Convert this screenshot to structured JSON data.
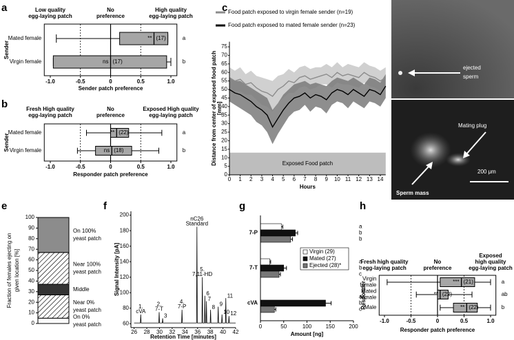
{
  "chart_data": [
    {
      "panel": "a",
      "type": "box",
      "headers": [
        [
          "Low quality",
          "egg-laying patch"
        ],
        [
          "No",
          "preference"
        ],
        [
          "High quality",
          "egg-laying patch"
        ]
      ],
      "ylabel": "Sender",
      "xlabel": "Sender patch preference",
      "categories": [
        "Mated female",
        "Virgin female"
      ],
      "min": [
        -0.9,
        -0.95
      ],
      "q1": [
        0.15,
        -0.95
      ],
      "median": [
        0.72,
        0.0
      ],
      "q3": [
        0.95,
        0.93
      ],
      "max": [
        0.95,
        1.0
      ],
      "stats": [
        "**",
        "ns"
      ],
      "n": [
        "(17)",
        "(17)"
      ],
      "letters": [
        "a",
        "b"
      ],
      "xlim": [
        -1.1,
        1.1
      ],
      "xticks": [
        {
          "value": -1,
          "label": "-1.0"
        },
        -0.5,
        0,
        0.5,
        {
          "value": 1,
          "label": "1.0"
        }
      ],
      "grid": true,
      "color": "#a6a6a6"
    },
    {
      "panel": "b",
      "type": "box",
      "headers": [
        [
          "Fresh High quality",
          "egg-laying patch"
        ],
        [
          "No",
          "preference"
        ],
        [
          "Exposed High quality",
          "egg-laying patch"
        ]
      ],
      "ylabel": "Sender",
      "xlabel": "Responder patch preference",
      "categories": [
        "Mated female",
        "Virgin female"
      ],
      "min": [
        -0.4,
        -0.55
      ],
      "q1": [
        0.0,
        -0.25
      ],
      "median": [
        0.1,
        0.02
      ],
      "q3": [
        0.3,
        0.35
      ],
      "max": [
        0.85,
        0.8
      ],
      "stats": [
        "**",
        "ns"
      ],
      "n": [
        "(22)",
        "(18)"
      ],
      "letters": [
        "a",
        "b"
      ],
      "xlim": [
        -1.1,
        1.1
      ],
      "xticks": [
        {
          "value": -1,
          "label": "-1.0"
        },
        -0.5,
        0,
        0.5,
        {
          "value": 1,
          "label": "1.0"
        }
      ],
      "grid": true,
      "color": "#a6a6a6"
    },
    {
      "panel": "c",
      "type": "line",
      "ylabel": [
        "Distance from center of exposed food patch",
        "[mm]"
      ],
      "xlabel": "Hours",
      "x": [
        0,
        0.5,
        1,
        1.5,
        2,
        2.5,
        3,
        3.5,
        4,
        4.5,
        5,
        5.5,
        6,
        6.5,
        7,
        7.5,
        8,
        8.5,
        9,
        9.5,
        10,
        10.5,
        11,
        11.5,
        12,
        12.5,
        13,
        13.5,
        14,
        14.5
      ],
      "series": [
        {
          "name": "Food patch exposed to  virgin female sender (n=19)",
          "color": "#8c8c8c",
          "band_color": "#c8c8c8",
          "values": [
            57,
            55,
            56,
            53,
            54,
            51,
            49,
            48,
            46,
            50,
            52,
            55,
            54,
            57,
            58,
            56,
            57,
            58,
            59,
            57,
            60,
            58,
            59,
            58,
            57,
            60,
            58,
            57,
            55,
            57
          ],
          "errors": [
            6,
            6,
            7,
            6,
            7,
            7,
            8,
            8,
            9,
            8,
            7,
            7,
            6,
            6,
            6,
            6,
            6,
            5,
            6,
            6,
            6,
            5,
            6,
            6,
            6,
            6,
            6,
            6,
            6,
            6
          ]
        },
        {
          "name": "Food patch exposed to  mated female sender (n=23)",
          "color": "#000000",
          "band_color": "#7a7a7a",
          "values": [
            50,
            48,
            47,
            45,
            43,
            40,
            38,
            35,
            28,
            33,
            38,
            42,
            45,
            46,
            48,
            45,
            47,
            46,
            44,
            48,
            50,
            49,
            47,
            50,
            48,
            46,
            50,
            49,
            47,
            52
          ],
          "errors": [
            7,
            7,
            8,
            8,
            8,
            9,
            9,
            10,
            10,
            9,
            9,
            8,
            8,
            8,
            7,
            8,
            7,
            7,
            8,
            7,
            7,
            7,
            8,
            7,
            7,
            7,
            7,
            7,
            7,
            7
          ]
        }
      ],
      "region": {
        "label": "Exposed Food patch",
        "ylim": [
          0,
          13
        ],
        "color": "#bdbdbd"
      },
      "xlim": [
        0,
        14.5
      ],
      "ylim": [
        0,
        78
      ],
      "xticks": [
        0,
        1,
        2,
        3,
        4,
        5,
        6,
        7,
        8,
        9,
        10,
        11,
        12,
        13,
        14
      ],
      "yticks": [
        0,
        5,
        10,
        15,
        20,
        25,
        30,
        35,
        40,
        45,
        50,
        55,
        60,
        65,
        70,
        75
      ]
    },
    {
      "panel": "e",
      "type": "stacked_bar",
      "ylabel": [
        "Fraction of females ejecting on",
        "given location [%]"
      ],
      "series": [
        {
          "name": [
            "On 0%",
            "yeast patch"
          ],
          "value": 5,
          "color": "#ffffff"
        },
        {
          "name": [
            "Near 0%",
            "yeast patch"
          ],
          "value": 22,
          "color": "#ffffff",
          "pattern": "hatch"
        },
        {
          "name": [
            "Middle"
          ],
          "value": 10,
          "color": "#333333"
        },
        {
          "name": [
            "Near 100%",
            "yeast patch"
          ],
          "value": 30,
          "color": "#ffffff",
          "pattern": "hatch"
        },
        {
          "name": [
            "On 100%",
            "yeast patch"
          ],
          "value": 33,
          "color": "#8c8c8c"
        }
      ],
      "ylim": [
        0,
        100
      ],
      "yticks": [
        0,
        10,
        20,
        30,
        40,
        50,
        60,
        70,
        80,
        90,
        100
      ]
    },
    {
      "panel": "f",
      "type": "line",
      "ylabel": [
        "Signal Intensity [pA]"
      ],
      "xlabel": "Retention Time [minutes]",
      "x": [
        26,
        26.99,
        27.05,
        27.11,
        29.89,
        29.95,
        30.01,
        30.44,
        30.5,
        30.56,
        33.49,
        33.55,
        33.61,
        35.84,
        35.9,
        35.96,
        36.69,
        36.75,
        36.81,
        37.09,
        37.15,
        37.21,
        37.34,
        37.4,
        37.46,
        37.99,
        38.05,
        38.11,
        39.19,
        39.25,
        39.31,
        39.79,
        39.85,
        39.91,
        40.39,
        40.45,
        40.51,
        40.89,
        40.95,
        41.01,
        42
      ],
      "values": [
        61,
        61,
        72,
        61,
        61,
        75,
        61,
        61,
        67,
        61,
        61,
        78,
        61,
        61,
        185,
        61,
        61,
        120,
        61,
        61,
        96,
        61,
        61,
        89,
        61,
        61,
        78,
        61,
        61,
        82,
        61,
        61,
        72,
        61,
        61,
        93,
        61,
        61,
        70,
        61,
        61
      ],
      "color": "#000000",
      "annotations": [
        {
          "text": [
            "1.",
            "cVA"
          ],
          "x": 27.05,
          "y": 72
        },
        {
          "text": [
            "2.",
            "7-T"
          ],
          "x": 29.95,
          "y": 75
        },
        {
          "text": [
            "3"
          ],
          "x": 30.5,
          "y": 67
        },
        {
          "text": [
            "4.",
            "7-P"
          ],
          "x": 33.55,
          "y": 78
        },
        {
          "text": [
            "nC26",
            "Standard"
          ],
          "x": 35.9,
          "y": 185
        },
        {
          "text": [
            "5.",
            "7,11-HD"
          ],
          "x": 36.75,
          "y": 120
        },
        {
          "text": [
            "6"
          ],
          "x": 37.15,
          "y": 96
        },
        {
          "text": [
            "7"
          ],
          "x": 37.4,
          "y": 89
        },
        {
          "text": [
            "8"
          ],
          "x": 38.05,
          "y": 78
        },
        {
          "text": [
            "9"
          ],
          "x": 39.25,
          "y": 82
        },
        {
          "text": [
            "10"
          ],
          "x": 39.85,
          "y": 72
        },
        {
          "text": [
            "11"
          ],
          "x": 40.45,
          "y": 93
        },
        {
          "text": [
            "12"
          ],
          "x": 40.95,
          "y": 70
        }
      ],
      "xlim": [
        25.5,
        42
      ],
      "ylim": [
        55,
        205
      ],
      "xticks": [
        26,
        28,
        30,
        32,
        34,
        36,
        38,
        40,
        42
      ],
      "yticks": [
        60,
        80,
        100,
        120,
        140,
        160,
        180,
        200
      ]
    },
    {
      "panel": "g",
      "type": "hbar",
      "categories": [
        "7-P",
        "7-T",
        "cVA"
      ],
      "series": [
        {
          "name": "Virgin (29)",
          "color": "#ffffff",
          "values": [
            45,
            20,
            0
          ],
          "errors": [
            3,
            2,
            0
          ],
          "letters": [
            "a",
            "a",
            "a"
          ]
        },
        {
          "name": "Mated (27)",
          "color": "#111111",
          "values": [
            75,
            50,
            140
          ],
          "errors": [
            5,
            6,
            12
          ],
          "letters": [
            "b",
            "b",
            "b"
          ]
        },
        {
          "name": "Ejected (28)*",
          "color": "#777777",
          "values": [
            65,
            40,
            30
          ],
          "errors": [
            4,
            3,
            3
          ],
          "letters": [
            "b",
            "c",
            "c"
          ]
        }
      ],
      "xlabel": "Amount [ng]",
      "xlim": [
        0,
        200
      ],
      "xticks": [
        0,
        50,
        100,
        150,
        200
      ]
    },
    {
      "panel": "h",
      "type": "box",
      "headers": [
        [
          "Fresh high quality",
          "egg-laying patch"
        ],
        [
          "No",
          "preference"
        ],
        [
          "Exposed",
          "high quality",
          "egg-laying patch"
        ]
      ],
      "ylabel": "Responder",
      "xlabel": "Responder patch preference",
      "categories": [
        [
          "Virgin",
          "female"
        ],
        [
          "Mated",
          "female"
        ],
        [
          "Male"
        ]
      ],
      "min": [
        -0.95,
        -0.4,
        0.05
      ],
      "q1": [
        0.05,
        0.0,
        0.3
      ],
      "median": [
        0.45,
        0.05,
        0.55
      ],
      "q3": [
        0.7,
        0.2,
        0.75
      ],
      "max": [
        1.0,
        0.65,
        1.0
      ],
      "stats": [
        "***",
        "**",
        "**"
      ],
      "n": [
        "(21)",
        "(22)",
        "(22)"
      ],
      "letters": [
        "a",
        "ab",
        "b"
      ],
      "xlim": [
        -1.1,
        1.1
      ],
      "xticks": [
        {
          "value": -1,
          "label": "-1.0"
        },
        -0.5,
        0,
        0.5,
        {
          "value": 1,
          "label": "1.0"
        }
      ],
      "grid": true,
      "color": "#a6a6a6"
    }
  ],
  "image": {
    "panel": "d",
    "ejected": [
      "ejected",
      "sperm"
    ],
    "plug": "Mating plug",
    "mass": "Sperm mass",
    "scale": "200 μm"
  }
}
